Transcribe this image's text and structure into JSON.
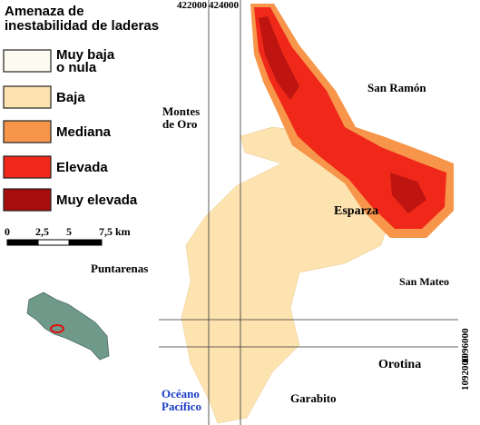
{
  "legend": {
    "title_lines": [
      "Amenaza de",
      "inestabilidad de laderas"
    ],
    "items": [
      {
        "label_lines": [
          "Muy baja",
          "o nula"
        ],
        "color": "#fdfbef"
      },
      {
        "label_lines": [
          "Baja"
        ],
        "color": "#fde3b0"
      },
      {
        "label_lines": [
          "Mediana"
        ],
        "color": "#f7964a"
      },
      {
        "label_lines": [
          "Elevada"
        ],
        "color": "#f0281a"
      },
      {
        "label_lines": [
          "Muy elevada"
        ],
        "color": "#a80d0d"
      }
    ]
  },
  "scale_bar": {
    "labels": [
      "0",
      "2,5",
      "5",
      "7,5 km"
    ]
  },
  "grid": {
    "x_labels": [
      "422000",
      "424000"
    ],
    "y_labels": [
      "1096000",
      "1092000"
    ]
  },
  "places": {
    "san_ramon": [
      "San Ramón"
    ],
    "montes_de_oro": [
      "Montes",
      "de Oro"
    ],
    "esparza": [
      "Esparza"
    ],
    "puntarenas": [
      "Puntarenas"
    ],
    "san_mateo": [
      "San Mateo"
    ],
    "orotina": [
      "Orotina"
    ],
    "garabito": [
      "Garabito"
    ],
    "oceano": [
      "Océano",
      "Pacífico"
    ]
  }
}
